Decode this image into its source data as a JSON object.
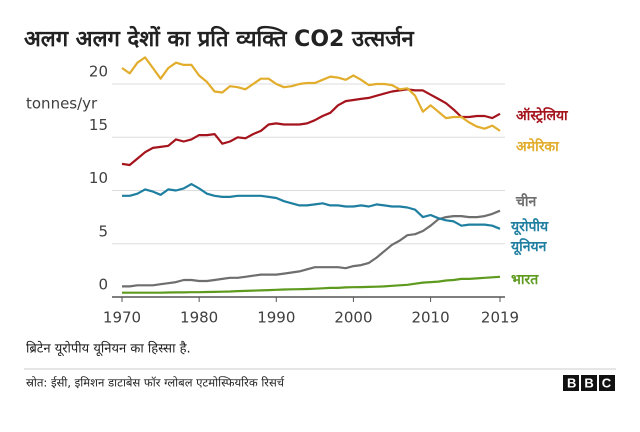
{
  "chart_data": {
    "type": "line",
    "title": "अलग अलग देशों का प्रति व्यक्ति CO2 उत्सर्जन",
    "y_label": "tonnes/yr",
    "note": "ब्रिटेन यूरोपीय यूनियन का हिस्सा है.",
    "source": "स्रोत: ईसी, इमिशन डाटाबेस फॉर ग्लोबल एटमोस्फियरिक रिसर्च",
    "logo": "BBC",
    "grid": true,
    "x": [
      1970,
      1971,
      1972,
      1973,
      1974,
      1975,
      1976,
      1977,
      1978,
      1979,
      1980,
      1981,
      1982,
      1983,
      1984,
      1985,
      1986,
      1987,
      1988,
      1989,
      1990,
      1991,
      1992,
      1993,
      1994,
      1995,
      1996,
      1997,
      1998,
      1999,
      2000,
      2001,
      2002,
      2003,
      2004,
      2005,
      2006,
      2007,
      2008,
      2009,
      2010,
      2011,
      2012,
      2013,
      2014,
      2015,
      2016,
      2017,
      2018,
      2019
    ],
    "xlim": [
      1970,
      2019
    ],
    "xticks": [
      1970,
      1980,
      1990,
      2000,
      2010,
      2019
    ],
    "ylim": [
      0,
      22.5
    ],
    "yticks": [
      0,
      5,
      10,
      15,
      20
    ],
    "series": [
      {
        "name": "ऑस्ट्रेलिया",
        "color": "#a5141d",
        "values": [
          12.5,
          12.4,
          13,
          13.6,
          14,
          14.1,
          14.2,
          14.8,
          14.6,
          14.8,
          15.2,
          15.2,
          15.3,
          14.4,
          14.6,
          15,
          14.9,
          15.3,
          15.6,
          16.2,
          16.3,
          16.2,
          16.2,
          16.2,
          16.3,
          16.6,
          17,
          17.3,
          18,
          18.4,
          18.5,
          18.6,
          18.7,
          18.9,
          19.1,
          19.3,
          19.4,
          19.5,
          19.4,
          19.4,
          19,
          18.6,
          18.2,
          17.6,
          16.9,
          16.9,
          17,
          17,
          16.8,
          17.2
        ]
      },
      {
        "name": "अमेरिका",
        "color": "#e2ad2c",
        "values": [
          21.5,
          21,
          22,
          22.5,
          21.5,
          20.5,
          21.5,
          22,
          21.8,
          21.8,
          20.8,
          20.2,
          19.3,
          19.2,
          19.8,
          19.7,
          19.5,
          20,
          20.5,
          20.5,
          20,
          19.7,
          19.8,
          20,
          20.1,
          20.1,
          20.4,
          20.7,
          20.6,
          20.4,
          20.8,
          20.4,
          19.9,
          20,
          20,
          19.9,
          19.5,
          19.6,
          18.9,
          17.4,
          18,
          17.4,
          16.8,
          16.9,
          16.9,
          16.4,
          16,
          15.8,
          16.1,
          15.6
        ]
      },
      {
        "name": "चीन",
        "color": "#6e6e6e",
        "values": [
          1.0,
          1.0,
          1.1,
          1.1,
          1.1,
          1.2,
          1.3,
          1.4,
          1.6,
          1.6,
          1.5,
          1.5,
          1.6,
          1.7,
          1.8,
          1.8,
          1.9,
          2.0,
          2.1,
          2.1,
          2.1,
          2.2,
          2.3,
          2.4,
          2.6,
          2.8,
          2.8,
          2.8,
          2.8,
          2.7,
          2.9,
          3.0,
          3.2,
          3.7,
          4.3,
          4.9,
          5.3,
          5.8,
          5.9,
          6.2,
          6.7,
          7.3,
          7.5,
          7.6,
          7.6,
          7.5,
          7.5,
          7.6,
          7.8,
          8.1
        ]
      },
      {
        "name": "यूरोपीय यूनियन",
        "color": "#1f7fa0",
        "values": [
          9.5,
          9.5,
          9.7,
          10.1,
          9.9,
          9.6,
          10.1,
          10,
          10.2,
          10.6,
          10.2,
          9.7,
          9.5,
          9.4,
          9.4,
          9.5,
          9.5,
          9.5,
          9.5,
          9.4,
          9.3,
          9,
          8.8,
          8.6,
          8.6,
          8.7,
          8.8,
          8.6,
          8.6,
          8.5,
          8.5,
          8.6,
          8.5,
          8.7,
          8.6,
          8.5,
          8.5,
          8.4,
          8.2,
          7.5,
          7.7,
          7.4,
          7.2,
          7.1,
          6.7,
          6.8,
          6.8,
          6.8,
          6.7,
          6.4
        ]
      },
      {
        "name": "भारत",
        "color": "#5e9a1e",
        "values": [
          0.4,
          0.4,
          0.4,
          0.4,
          0.4,
          0.4,
          0.42,
          0.43,
          0.43,
          0.45,
          0.45,
          0.47,
          0.48,
          0.5,
          0.52,
          0.55,
          0.57,
          0.6,
          0.62,
          0.65,
          0.68,
          0.7,
          0.72,
          0.73,
          0.75,
          0.78,
          0.82,
          0.85,
          0.85,
          0.9,
          0.92,
          0.93,
          0.95,
          0.97,
          1.0,
          1.05,
          1.1,
          1.15,
          1.25,
          1.35,
          1.4,
          1.45,
          1.55,
          1.6,
          1.7,
          1.7,
          1.75,
          1.8,
          1.85,
          1.9
        ]
      }
    ]
  }
}
